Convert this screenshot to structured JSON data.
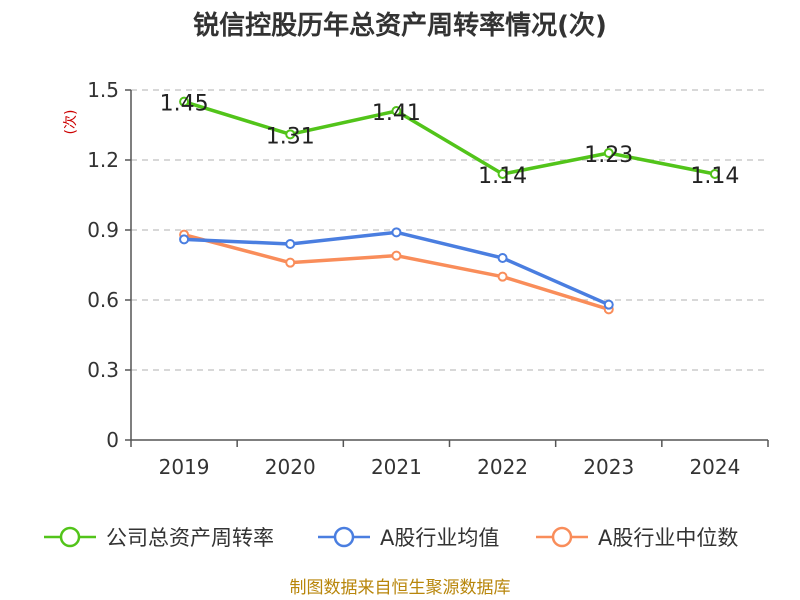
{
  "colors": {
    "series_1": "#52c41a",
    "series_2": "#4a7ee0",
    "series_3": "#f98d5a",
    "ylabel": "#cc0000",
    "source": "#b8860b",
    "grid": "#cccccc",
    "axis": "#555555"
  },
  "chart_data": {
    "type": "line",
    "title": "锐信控股历年总资产周转率情况(次)",
    "ylabel": "(次)",
    "xlabel": "",
    "categories": [
      "2019",
      "2020",
      "2021",
      "2022",
      "2023",
      "2024"
    ],
    "ylim": [
      0,
      1.5
    ],
    "yticks": [
      "0",
      "0.3",
      "0.6",
      "0.9",
      "1.2",
      "1.5"
    ],
    "grid": "horizontal-dashed",
    "legend_position": "bottom",
    "series": [
      {
        "name": "公司总资产周转率",
        "values": [
          1.45,
          1.31,
          1.41,
          1.14,
          1.23,
          1.14
        ],
        "labels": [
          "1.45",
          "1.31",
          "1.41",
          "1.14",
          "1.23",
          "1.14"
        ]
      },
      {
        "name": "A股行业均值",
        "values": [
          0.86,
          0.84,
          0.89,
          0.78,
          0.58,
          null
        ]
      },
      {
        "name": "A股行业中位数",
        "values": [
          0.88,
          0.76,
          0.79,
          0.7,
          0.56,
          null
        ]
      }
    ]
  },
  "footer": {
    "source": "制图数据来自恒生聚源数据库"
  }
}
